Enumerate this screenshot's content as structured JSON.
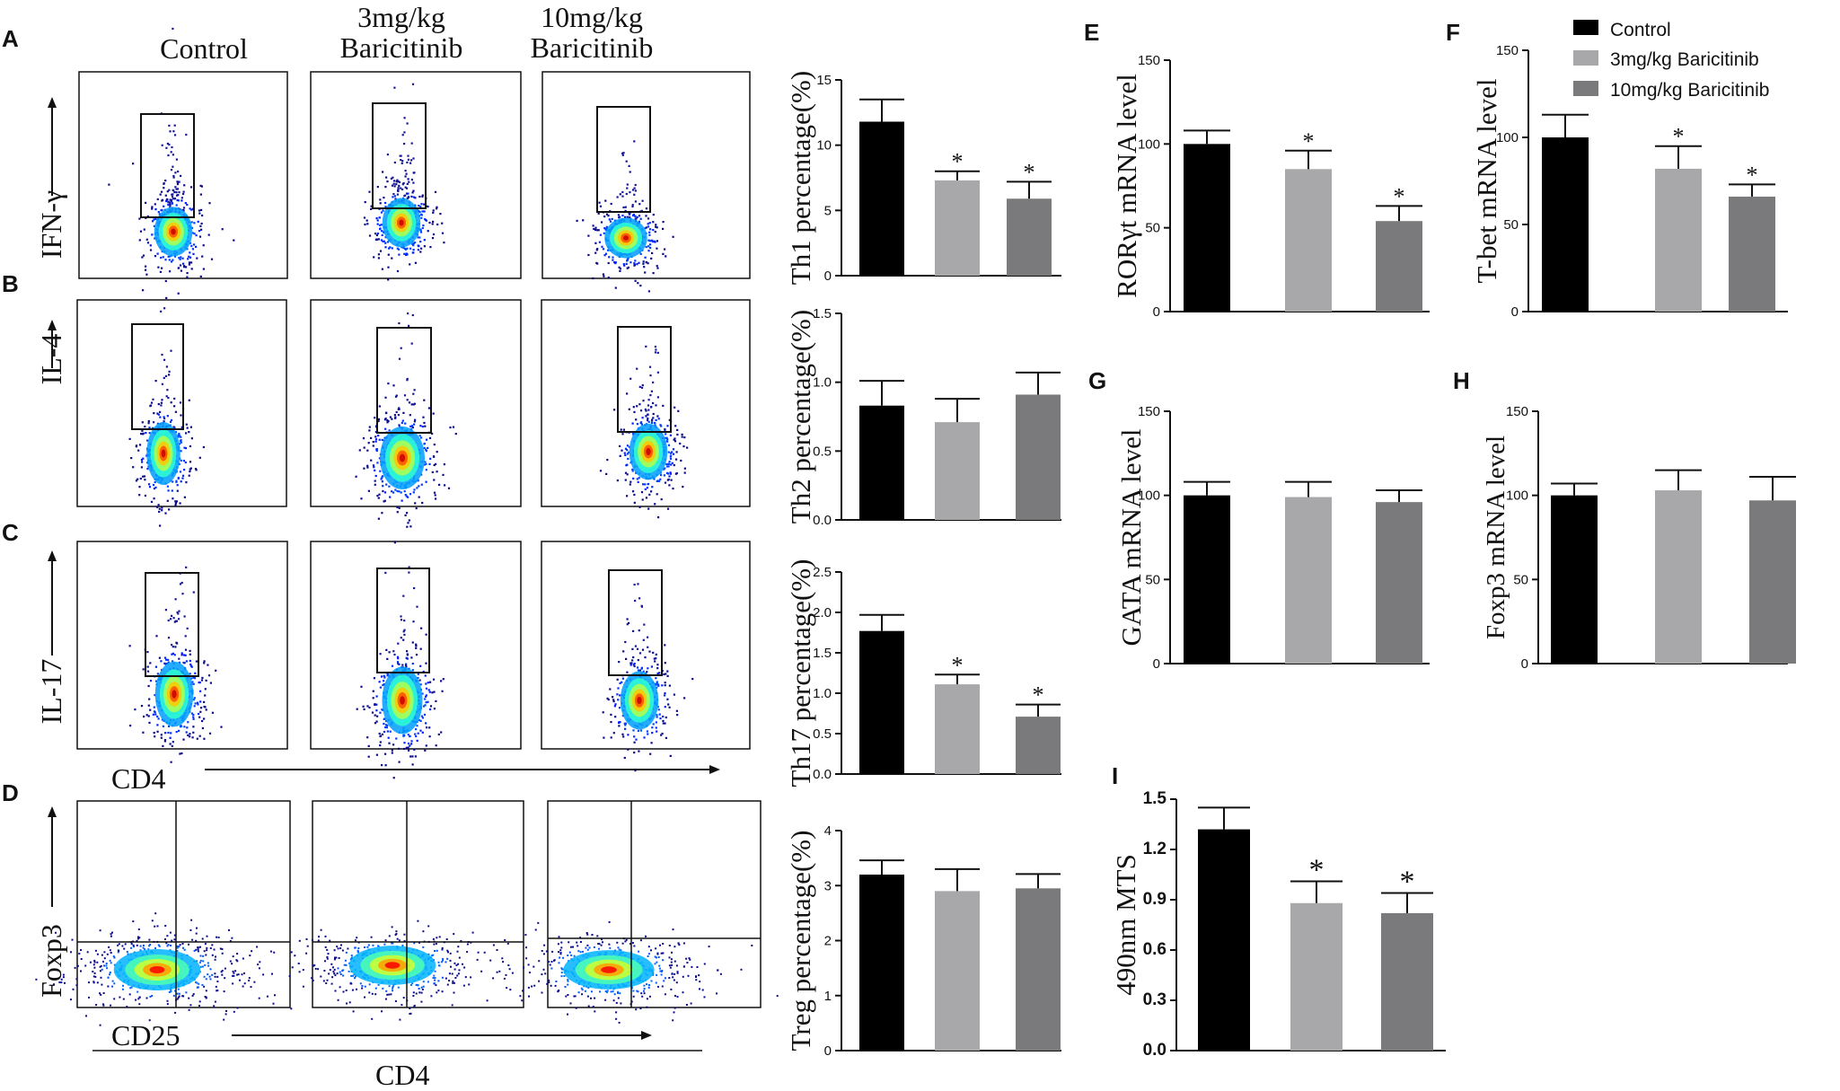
{
  "figure": {
    "columns": [
      "Control",
      "3mg/kg",
      "Baricitinib",
      "10mg/kg",
      "Baricitinib"
    ],
    "row_labels": [
      "IFN-γ",
      "IL-4",
      "IL-17",
      "Foxp3"
    ],
    "axis_labels": {
      "cd4_mid": "CD4",
      "cd25": "CD25",
      "cd4_bottom": "CD4"
    },
    "panel_letters": [
      "A",
      "B",
      "C",
      "D",
      "E",
      "F",
      "G",
      "H",
      "I"
    ],
    "bar_colors": [
      "#000000",
      "#a8a8aa",
      "#7a7a7c"
    ],
    "colormap": "jet-density"
  },
  "legend": {
    "items": [
      {
        "label": "Control",
        "color": "#000000"
      },
      {
        "label": "3mg/kg Baricitinib",
        "color": "#a8a8aa"
      },
      {
        "label": "10mg/kg Baricitinib",
        "color": "#7a7a7c"
      }
    ]
  },
  "chart_data": [
    {
      "id": "th1",
      "panel": "A",
      "type": "bar",
      "ylabel": "Th1 percentage(%)",
      "ylim": [
        0,
        15
      ],
      "ticks": [
        0,
        5,
        10,
        15
      ],
      "tick_labels": [
        "0",
        "5",
        "10",
        "15"
      ],
      "categories": [
        "Control",
        "3mg/kg Baricitinib",
        "10mg/kg Baricitinib"
      ],
      "values": [
        11.8,
        7.3,
        5.9
      ],
      "errors": [
        1.7,
        0.7,
        1.3
      ],
      "stars": [
        "",
        "*",
        "*"
      ]
    },
    {
      "id": "th2",
      "panel": "B",
      "type": "bar",
      "ylabel": "Th2 percentage(%)",
      "ylim": [
        0,
        1.5
      ],
      "ticks": [
        0,
        0.5,
        1.0,
        1.5
      ],
      "tick_labels": [
        "0.0",
        "0.5",
        "1.0",
        "1.5"
      ],
      "categories": [
        "Control",
        "3mg/kg Baricitinib",
        "10mg/kg Baricitinib"
      ],
      "values": [
        0.83,
        0.71,
        0.91
      ],
      "errors": [
        0.18,
        0.17,
        0.16
      ],
      "stars": [
        "",
        "",
        ""
      ]
    },
    {
      "id": "th17",
      "panel": "C",
      "type": "bar",
      "ylabel": "Th17 percentage(%)",
      "ylim": [
        0,
        2.5
      ],
      "ticks": [
        0,
        0.5,
        1.0,
        1.5,
        2.0,
        2.5
      ],
      "tick_labels": [
        "0.0",
        "0.5",
        "1.0",
        "1.5",
        "2.0",
        "2.5"
      ],
      "categories": [
        "Control",
        "3mg/kg Baricitinib",
        "10mg/kg Baricitinib"
      ],
      "values": [
        1.77,
        1.11,
        0.71
      ],
      "errors": [
        0.2,
        0.12,
        0.15
      ],
      "stars": [
        "",
        "*",
        "*"
      ]
    },
    {
      "id": "treg",
      "panel": "D",
      "type": "bar",
      "ylabel": "Treg percentage(%)",
      "ylim": [
        0,
        4
      ],
      "ticks": [
        0,
        1,
        2,
        3,
        4
      ],
      "tick_labels": [
        "0",
        "1",
        "2",
        "3",
        "4"
      ],
      "categories": [
        "Control",
        "3mg/kg Baricitinib",
        "10mg/kg Baricitinib"
      ],
      "values": [
        3.2,
        2.9,
        2.95
      ],
      "errors": [
        0.26,
        0.4,
        0.26
      ],
      "stars": [
        "",
        "",
        ""
      ]
    },
    {
      "id": "ror",
      "panel": "E",
      "type": "bar",
      "ylabel": "RORγt mRNA level",
      "ylim": [
        0,
        150
      ],
      "ticks": [
        0,
        50,
        100,
        150
      ],
      "tick_labels": [
        "0",
        "50",
        "100",
        "150"
      ],
      "categories": [
        "Control",
        "3mg/kg Baricitinib",
        "10mg/kg Baricitinib"
      ],
      "values": [
        100,
        85,
        54
      ],
      "errors": [
        8,
        11,
        9
      ],
      "stars": [
        "",
        "*",
        "*"
      ]
    },
    {
      "id": "tbet",
      "panel": "F",
      "type": "bar",
      "ylabel": "T-bet mRNA level",
      "ylim": [
        0,
        150
      ],
      "ticks": [
        0,
        50,
        100,
        150
      ],
      "tick_labels": [
        "0",
        "50",
        "100",
        "150"
      ],
      "categories": [
        "Control",
        "3mg/kg Baricitinib",
        "10mg/kg Baricitinib"
      ],
      "values": [
        100,
        82,
        66
      ],
      "errors": [
        13,
        13,
        7
      ],
      "stars": [
        "",
        "*",
        "*"
      ]
    },
    {
      "id": "gata",
      "panel": "G",
      "type": "bar",
      "ylabel": "GATA mRNA level",
      "ylim": [
        0,
        150
      ],
      "ticks": [
        0,
        50,
        100,
        150
      ],
      "tick_labels": [
        "0",
        "50",
        "100",
        "150"
      ],
      "categories": [
        "Control",
        "3mg/kg Baricitinib",
        "10mg/kg Baricitinib"
      ],
      "values": [
        100,
        99,
        96
      ],
      "errors": [
        8,
        9,
        7
      ],
      "stars": [
        "",
        "",
        ""
      ]
    },
    {
      "id": "foxp3",
      "panel": "H",
      "type": "bar",
      "ylabel": "Foxp3  mRNA level",
      "ylim": [
        0,
        150
      ],
      "ticks": [
        0,
        50,
        100,
        150
      ],
      "tick_labels": [
        "0",
        "50",
        "100",
        "150"
      ],
      "categories": [
        "Control",
        "3mg/kg Baricitinib",
        "10mg/kg Baricitinib"
      ],
      "values": [
        100,
        103,
        97
      ],
      "errors": [
        7,
        12,
        14
      ],
      "stars": [
        "",
        "",
        ""
      ]
    },
    {
      "id": "mts",
      "panel": "I",
      "type": "bar",
      "ylabel": "490nm MTS",
      "ylim": [
        0,
        1.5
      ],
      "ticks": [
        0,
        0.3,
        0.6,
        0.9,
        1.2,
        1.5
      ],
      "tick_labels": [
        "0.0",
        "0.3",
        "0.6",
        "0.9",
        "1.2",
        "1.5"
      ],
      "categories": [
        "Control",
        "3mg/kg Baricitinib",
        "10mg/kg Baricitinib"
      ],
      "values": [
        1.32,
        0.88,
        0.82
      ],
      "errors": [
        0.13,
        0.13,
        0.12
      ],
      "stars": [
        "",
        "*",
        "*"
      ]
    }
  ]
}
